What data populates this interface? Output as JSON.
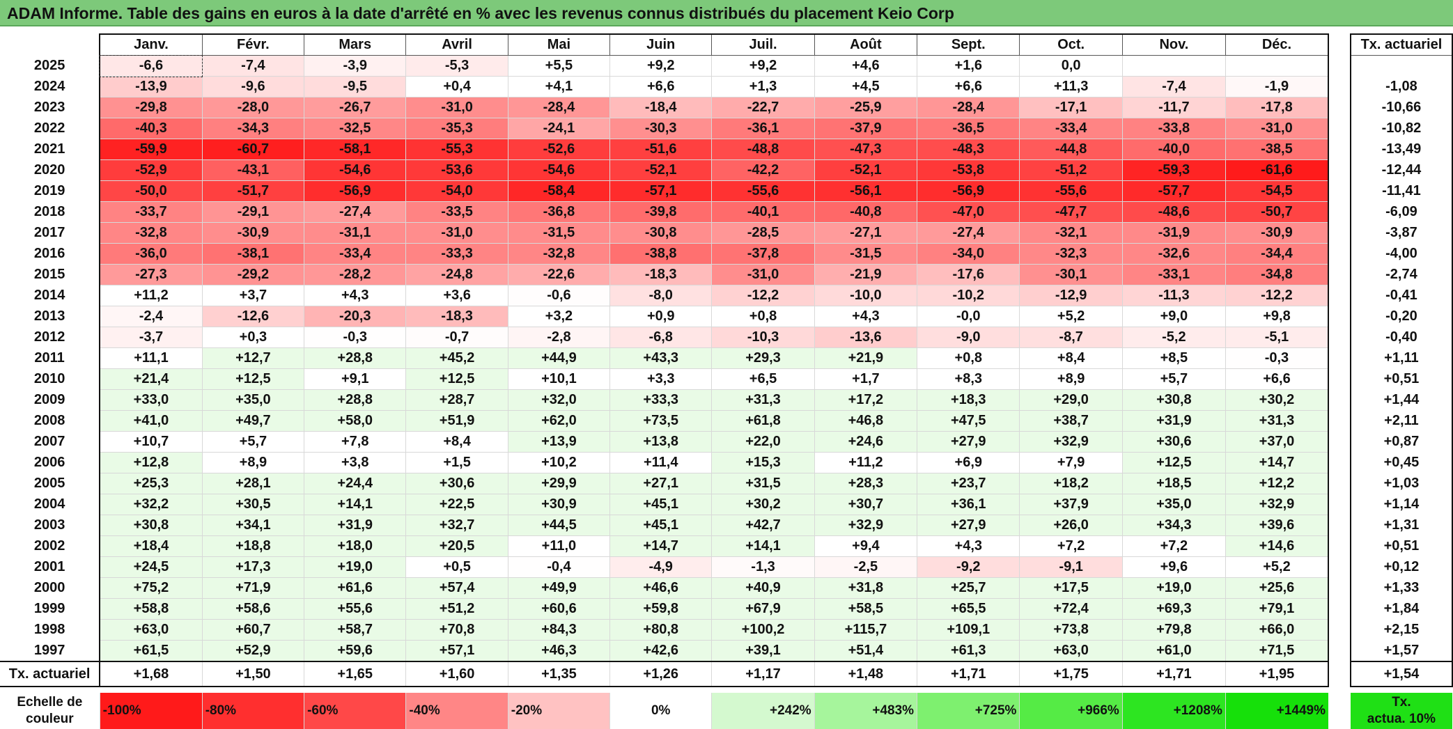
{
  "title": "ADAM Informe. Table des gains en euros à la date d'arrêté en % avec les revenus connus distribués du placement Keio Corp",
  "months": [
    "Janv.",
    "Févr.",
    "Mars",
    "Avril",
    "Mai",
    "Juin",
    "Juil.",
    "Août",
    "Sept.",
    "Oct.",
    "Nov.",
    "Déc."
  ],
  "rate_header": "Tx. actuariel",
  "rows": [
    {
      "year": "2025",
      "values": [
        "-6,6",
        "-7,4",
        "-3,9",
        "-5,3",
        "+5,5",
        "+9,2",
        "+9,2",
        "+4,6",
        "+1,6",
        "0,0",
        "",
        ""
      ],
      "rate": ""
    },
    {
      "year": "2024",
      "values": [
        "-13,9",
        "-9,6",
        "-9,5",
        "+0,4",
        "+4,1",
        "+6,6",
        "+1,3",
        "+4,5",
        "+6,6",
        "+11,3",
        "-7,4",
        "-1,9"
      ],
      "rate": "-1,08"
    },
    {
      "year": "2023",
      "values": [
        "-29,8",
        "-28,0",
        "-26,7",
        "-31,0",
        "-28,4",
        "-18,4",
        "-22,7",
        "-25,9",
        "-28,4",
        "-17,1",
        "-11,7",
        "-17,8"
      ],
      "rate": "-10,66"
    },
    {
      "year": "2022",
      "values": [
        "-40,3",
        "-34,3",
        "-32,5",
        "-35,3",
        "-24,1",
        "-30,3",
        "-36,1",
        "-37,9",
        "-36,5",
        "-33,4",
        "-33,8",
        "-31,0"
      ],
      "rate": "-10,82"
    },
    {
      "year": "2021",
      "values": [
        "-59,9",
        "-60,7",
        "-58,1",
        "-55,3",
        "-52,6",
        "-51,6",
        "-48,8",
        "-47,3",
        "-48,3",
        "-44,8",
        "-40,0",
        "-38,5"
      ],
      "rate": "-13,49"
    },
    {
      "year": "2020",
      "values": [
        "-52,9",
        "-43,1",
        "-54,6",
        "-53,6",
        "-54,6",
        "-52,1",
        "-42,2",
        "-52,1",
        "-53,8",
        "-51,2",
        "-59,3",
        "-61,6"
      ],
      "rate": "-12,44"
    },
    {
      "year": "2019",
      "values": [
        "-50,0",
        "-51,7",
        "-56,9",
        "-54,0",
        "-58,4",
        "-57,1",
        "-55,6",
        "-56,1",
        "-56,9",
        "-55,6",
        "-57,7",
        "-54,5"
      ],
      "rate": "-11,41"
    },
    {
      "year": "2018",
      "values": [
        "-33,7",
        "-29,1",
        "-27,4",
        "-33,5",
        "-36,8",
        "-39,8",
        "-40,1",
        "-40,8",
        "-47,0",
        "-47,7",
        "-48,6",
        "-50,7"
      ],
      "rate": "-6,09"
    },
    {
      "year": "2017",
      "values": [
        "-32,8",
        "-30,9",
        "-31,1",
        "-31,0",
        "-31,5",
        "-30,8",
        "-28,5",
        "-27,1",
        "-27,4",
        "-32,1",
        "-31,9",
        "-30,9"
      ],
      "rate": "-3,87"
    },
    {
      "year": "2016",
      "values": [
        "-36,0",
        "-38,1",
        "-33,4",
        "-33,3",
        "-32,8",
        "-38,8",
        "-37,8",
        "-31,5",
        "-34,0",
        "-32,3",
        "-32,6",
        "-34,4"
      ],
      "rate": "-4,00"
    },
    {
      "year": "2015",
      "values": [
        "-27,3",
        "-29,2",
        "-28,2",
        "-24,8",
        "-22,6",
        "-18,3",
        "-31,0",
        "-21,9",
        "-17,6",
        "-30,1",
        "-33,1",
        "-34,8"
      ],
      "rate": "-2,74"
    },
    {
      "year": "2014",
      "values": [
        "+11,2",
        "+3,7",
        "+4,3",
        "+3,6",
        "-0,6",
        "-8,0",
        "-12,2",
        "-10,0",
        "-10,2",
        "-12,9",
        "-11,3",
        "-12,2"
      ],
      "rate": "-0,41"
    },
    {
      "year": "2013",
      "values": [
        "-2,4",
        "-12,6",
        "-20,3",
        "-18,3",
        "+3,2",
        "+0,9",
        "+0,8",
        "+4,3",
        "-0,0",
        "+5,2",
        "+9,0",
        "+9,8"
      ],
      "rate": "-0,20"
    },
    {
      "year": "2012",
      "values": [
        "-3,7",
        "+0,3",
        "-0,3",
        "-0,7",
        "-2,8",
        "-6,8",
        "-10,3",
        "-13,6",
        "-9,0",
        "-8,7",
        "-5,2",
        "-5,1"
      ],
      "rate": "-0,40"
    },
    {
      "year": "2011",
      "values": [
        "+11,1",
        "+12,7",
        "+28,8",
        "+45,2",
        "+44,9",
        "+43,3",
        "+29,3",
        "+21,9",
        "+0,8",
        "+8,4",
        "+8,5",
        "-0,3"
      ],
      "rate": "+1,11"
    },
    {
      "year": "2010",
      "values": [
        "+21,4",
        "+12,5",
        "+9,1",
        "+12,5",
        "+10,1",
        "+3,3",
        "+6,5",
        "+1,7",
        "+8,3",
        "+8,9",
        "+5,7",
        "+6,6"
      ],
      "rate": "+0,51"
    },
    {
      "year": "2009",
      "values": [
        "+33,0",
        "+35,0",
        "+28,8",
        "+28,7",
        "+32,0",
        "+33,3",
        "+31,3",
        "+17,2",
        "+18,3",
        "+29,0",
        "+30,8",
        "+30,2"
      ],
      "rate": "+1,44"
    },
    {
      "year": "2008",
      "values": [
        "+41,0",
        "+49,7",
        "+58,0",
        "+51,9",
        "+62,0",
        "+73,5",
        "+61,8",
        "+46,8",
        "+47,5",
        "+38,7",
        "+31,9",
        "+31,3"
      ],
      "rate": "+2,11"
    },
    {
      "year": "2007",
      "values": [
        "+10,7",
        "+5,7",
        "+7,8",
        "+8,4",
        "+13,9",
        "+13,8",
        "+22,0",
        "+24,6",
        "+27,9",
        "+32,9",
        "+30,6",
        "+37,0"
      ],
      "rate": "+0,87"
    },
    {
      "year": "2006",
      "values": [
        "+12,8",
        "+8,9",
        "+3,8",
        "+1,5",
        "+10,2",
        "+11,4",
        "+15,3",
        "+11,2",
        "+6,9",
        "+7,9",
        "+12,5",
        "+14,7"
      ],
      "rate": "+0,45"
    },
    {
      "year": "2005",
      "values": [
        "+25,3",
        "+28,1",
        "+24,4",
        "+30,6",
        "+29,9",
        "+27,1",
        "+31,5",
        "+28,3",
        "+23,7",
        "+18,2",
        "+18,5",
        "+12,2"
      ],
      "rate": "+1,03"
    },
    {
      "year": "2004",
      "values": [
        "+32,2",
        "+30,5",
        "+14,1",
        "+22,5",
        "+30,9",
        "+45,1",
        "+30,2",
        "+30,7",
        "+36,1",
        "+37,9",
        "+35,0",
        "+32,9"
      ],
      "rate": "+1,14"
    },
    {
      "year": "2003",
      "values": [
        "+30,8",
        "+34,1",
        "+31,9",
        "+32,7",
        "+44,5",
        "+45,1",
        "+42,7",
        "+32,9",
        "+27,9",
        "+26,0",
        "+34,3",
        "+39,6"
      ],
      "rate": "+1,31"
    },
    {
      "year": "2002",
      "values": [
        "+18,4",
        "+18,8",
        "+18,0",
        "+20,5",
        "+11,0",
        "+14,7",
        "+14,1",
        "+9,4",
        "+4,3",
        "+7,2",
        "+7,2",
        "+14,6"
      ],
      "rate": "+0,51"
    },
    {
      "year": "2001",
      "values": [
        "+24,5",
        "+17,3",
        "+19,0",
        "+0,5",
        "-0,4",
        "-4,9",
        "-1,3",
        "-2,5",
        "-9,2",
        "-9,1",
        "+9,6",
        "+5,2"
      ],
      "rate": "+0,12"
    },
    {
      "year": "2000",
      "values": [
        "+75,2",
        "+71,9",
        "+61,6",
        "+57,4",
        "+49,9",
        "+46,6",
        "+40,9",
        "+31,8",
        "+25,7",
        "+17,5",
        "+19,0",
        "+25,6"
      ],
      "rate": "+1,33"
    },
    {
      "year": "1999",
      "values": [
        "+58,8",
        "+58,6",
        "+55,6",
        "+51,2",
        "+60,6",
        "+59,8",
        "+67,9",
        "+58,5",
        "+65,5",
        "+72,4",
        "+69,3",
        "+79,1"
      ],
      "rate": "+1,84"
    },
    {
      "year": "1998",
      "values": [
        "+63,0",
        "+60,7",
        "+58,7",
        "+70,8",
        "+84,3",
        "+80,8",
        "+100,2",
        "+115,7",
        "+109,1",
        "+73,8",
        "+79,8",
        "+66,0"
      ],
      "rate": "+2,15"
    },
    {
      "year": "1997",
      "values": [
        "+61,5",
        "+52,9",
        "+59,6",
        "+57,1",
        "+46,3",
        "+42,6",
        "+39,1",
        "+51,4",
        "+61,3",
        "+63,0",
        "+61,0",
        "+71,5"
      ],
      "rate": "+1,57"
    }
  ],
  "footer": {
    "label": "Tx. actuariel",
    "values": [
      "+1,68",
      "+1,50",
      "+1,65",
      "+1,60",
      "+1,35",
      "+1,26",
      "+1,17",
      "+1,48",
      "+1,71",
      "+1,75",
      "+1,71",
      "+1,95"
    ],
    "rate": "+1,54"
  },
  "scale": {
    "label_line1": "Echelle de",
    "label_line2": "couleur",
    "items": [
      {
        "text": "-100%",
        "color": "#ff1a1a",
        "align": "left"
      },
      {
        "text": "-80%",
        "color": "#ff2f2f",
        "align": "left"
      },
      {
        "text": "-60%",
        "color": "#ff4848",
        "align": "left"
      },
      {
        "text": "-40%",
        "color": "#ff8686",
        "align": "left"
      },
      {
        "text": "-20%",
        "color": "#ffc2c2",
        "align": "left"
      },
      {
        "text": "0%",
        "color": "#ffffff",
        "align": "center"
      },
      {
        "text": "+242%",
        "color": "#d4f9cf",
        "align": "right"
      },
      {
        "text": "+483%",
        "color": "#a6f59c",
        "align": "right"
      },
      {
        "text": "+725%",
        "color": "#7ef06f",
        "align": "right"
      },
      {
        "text": "+966%",
        "color": "#55eb45",
        "align": "right"
      },
      {
        "text": "+1208%",
        "color": "#2de521",
        "align": "right"
      },
      {
        "text": "+1449%",
        "color": "#16e00a",
        "align": "right"
      }
    ],
    "rate_line1": "Tx.",
    "rate_line2": "actua. 10%",
    "rate_color": "#1fe015"
  },
  "colors": {
    "title_bg": "#7dc97a",
    "negative_max": "#ff1a1a",
    "positive_tint": "#e9fbe6"
  }
}
